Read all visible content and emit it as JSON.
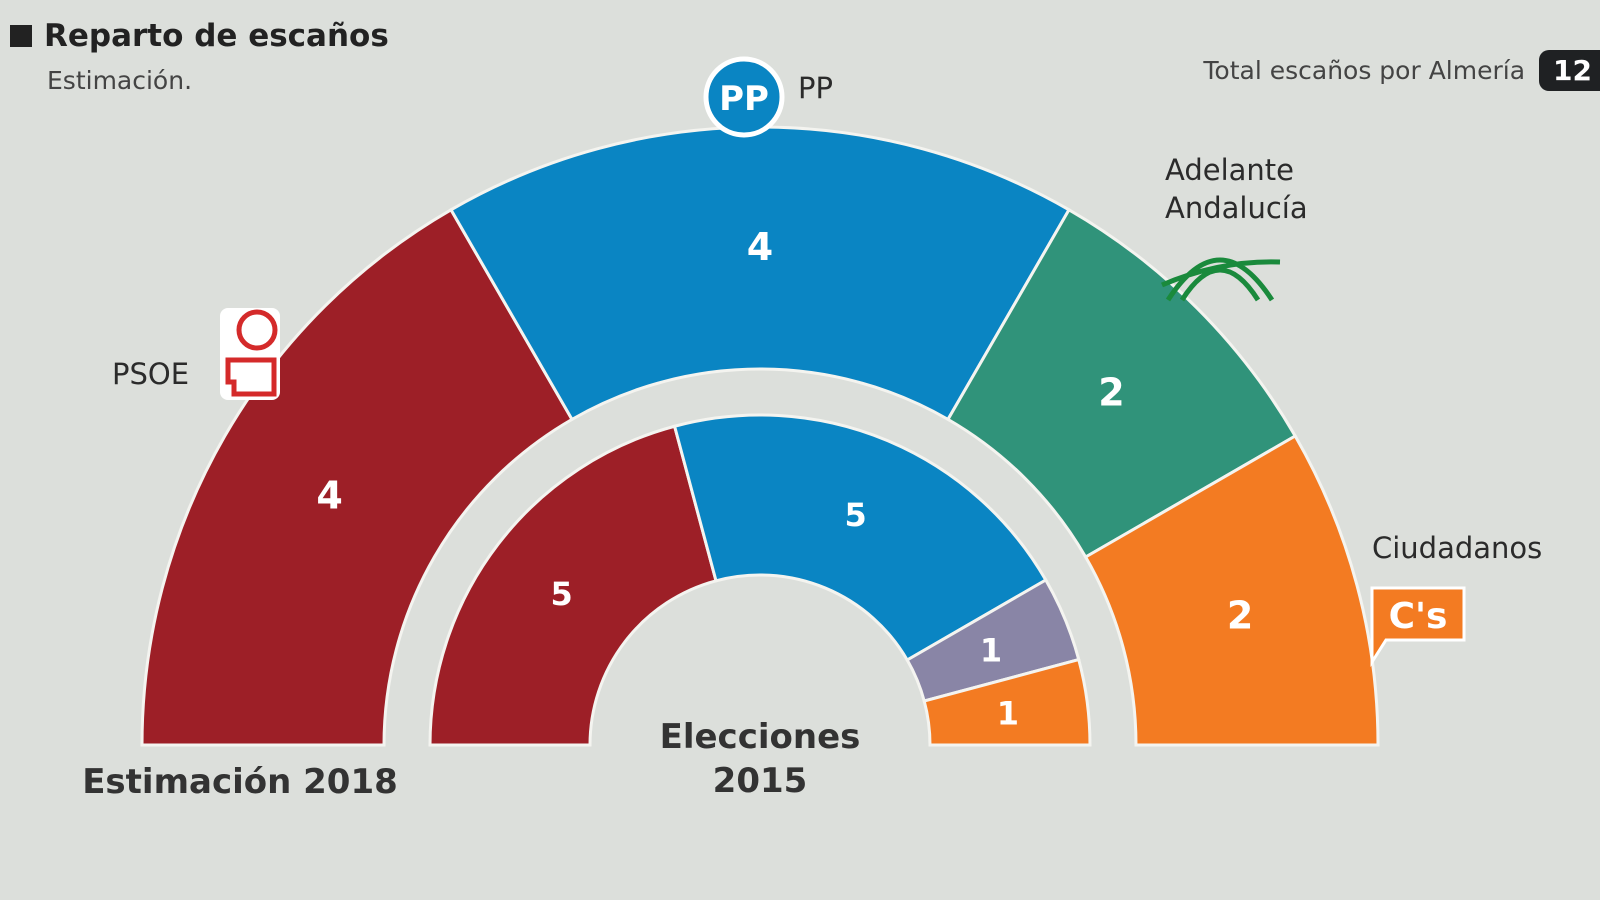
{
  "header": {
    "title": "Reparto de escaños",
    "subtitle": "Estimación.",
    "total_label": "Total escaños por Almería",
    "total_value": "12"
  },
  "chart_data": {
    "type": "parliament-semicircle",
    "title": "Reparto de escaños",
    "total_seats": 12,
    "rings": [
      {
        "name": "Estimación 2018",
        "position": "outer",
        "segments": [
          {
            "party": "PSOE",
            "seats": 4,
            "color": "#9d1f27"
          },
          {
            "party": "PP",
            "seats": 4,
            "color": "#0a85c3"
          },
          {
            "party": "Adelante Andalucía",
            "seats": 2,
            "color": "#30937a"
          },
          {
            "party": "Ciudadanos",
            "seats": 2,
            "color": "#f37b22"
          }
        ]
      },
      {
        "name": "Elecciones 2015",
        "position": "inner",
        "segments": [
          {
            "party": "PSOE",
            "seats": 5,
            "color": "#9d1f27"
          },
          {
            "party": "PP",
            "seats": 5,
            "color": "#0a85c3"
          },
          {
            "party": "",
            "seats": 1,
            "color": "#8985a6"
          },
          {
            "party": "Ciudadanos",
            "seats": 1,
            "color": "#f37b22"
          }
        ]
      }
    ]
  },
  "labels": {
    "psoe": "PSOE",
    "pp": "PP",
    "aa_line1": "Adelante",
    "aa_line2": "Andalucía",
    "cs": "Ciudadanos",
    "ring_outer": "Estimación 2018",
    "ring_inner_line1": "Elecciones",
    "ring_inner_line2": "2015"
  },
  "logos": {
    "pp": "PP",
    "cs": "C's",
    "psoe": "rose-fist-logo",
    "aa": "arches-logo"
  },
  "colors": {
    "background": "#dcdfdb"
  }
}
